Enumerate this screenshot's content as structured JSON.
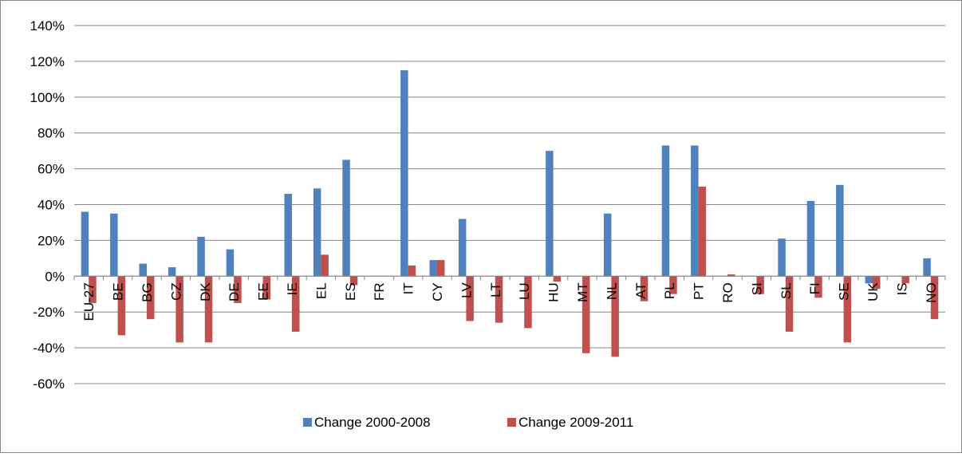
{
  "chart_data": {
    "type": "bar",
    "categories": [
      "EU-27",
      "BE",
      "BG",
      "CZ",
      "DK",
      "DE",
      "EE",
      "IE",
      "EL",
      "ES",
      "FR",
      "IT",
      "CY",
      "LV",
      "LT",
      "LU",
      "HU",
      "MT",
      "NL",
      "AT",
      "PL",
      "PT",
      "RO",
      "SI",
      "SL",
      "FI",
      "SE",
      "UK",
      "IS",
      "NO"
    ],
    "series": [
      {
        "name": "Change 2000-2008",
        "color": "#4F81BD",
        "values": [
          36,
          35,
          7,
          5,
          22,
          15,
          0,
          46,
          49,
          65,
          0,
          115,
          9,
          32,
          0,
          0,
          70,
          0,
          35,
          0,
          73,
          73,
          0,
          0,
          21,
          42,
          51,
          -4,
          0,
          10
        ]
      },
      {
        "name": "Change 2009-2011",
        "color": "#C0504D",
        "values": [
          -15,
          -33,
          -24,
          -37,
          -37,
          -15,
          -13,
          -31,
          12,
          -5,
          0,
          6,
          9,
          -25,
          -26,
          -29,
          -3,
          -43,
          -45,
          -14,
          -10,
          50,
          1,
          -10,
          -31,
          -12,
          -37,
          -7,
          -4,
          -24
        ]
      }
    ],
    "yaxis": {
      "min": -60,
      "max": 140,
      "step": 20,
      "tick_suffix": "%"
    },
    "grid": "horizontal",
    "legend": "bottom",
    "title": "",
    "xlabel": "",
    "ylabel": ""
  }
}
